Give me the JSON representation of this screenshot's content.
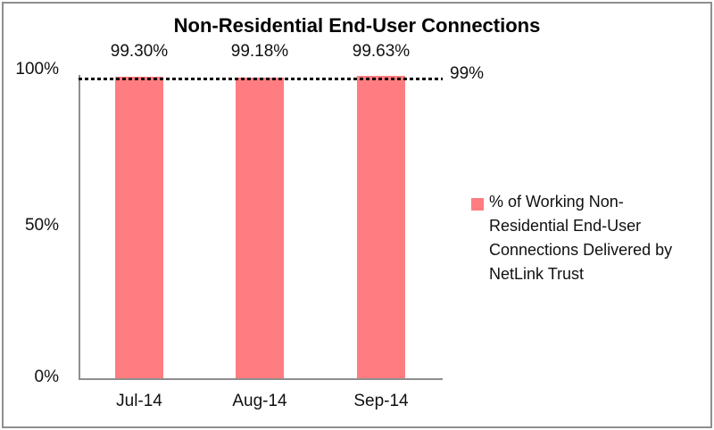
{
  "chart_data": {
    "type": "bar",
    "title": "Non-Residential End-User Connections",
    "categories": [
      "Jul-14",
      "Aug-14",
      "Sep-14"
    ],
    "values": [
      99.3,
      99.18,
      99.63
    ],
    "value_labels": [
      "99.30%",
      "99.18%",
      "99.63%"
    ],
    "yticks": [
      "100%",
      "50%",
      "0%"
    ],
    "ylim": [
      0,
      100
    ],
    "grid": "off",
    "bar_color": "#ff7d80",
    "axis_color": "#8e8e8e",
    "target_line": {
      "value": 99,
      "label": "99%",
      "style": "dotted-black"
    },
    "legend": {
      "position": "right",
      "text": "% of Working Non-Residential End-User Connections Delivered by NetLink Trust",
      "lines": [
        "% of Working Non-",
        "Residential End-User",
        "Connections Delivered by",
        "NetLink Trust"
      ]
    }
  }
}
